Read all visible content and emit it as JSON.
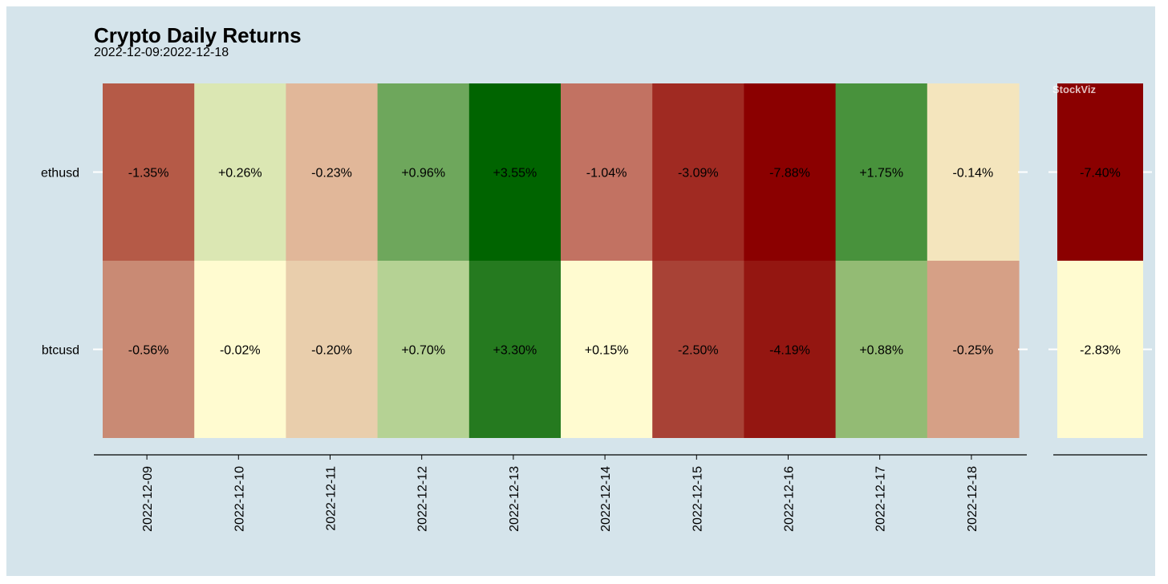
{
  "chart_data": {
    "type": "heatmap",
    "title": "Crypto Daily Returns",
    "subtitle": "2022-12-09:2022-12-18",
    "watermark": "StockViz",
    "rows": [
      "ethusd",
      "btcusd"
    ],
    "columns": [
      "2022-12-09",
      "2022-12-10",
      "2022-12-11",
      "2022-12-12",
      "2022-12-13",
      "2022-12-14",
      "2022-12-15",
      "2022-12-16",
      "2022-12-17",
      "2022-12-18"
    ],
    "values": [
      [
        -1.35,
        0.26,
        -0.23,
        0.96,
        3.55,
        -1.04,
        -3.09,
        -7.88,
        1.75,
        -0.14
      ],
      [
        -0.56,
        -0.02,
        -0.2,
        0.7,
        3.3,
        0.15,
        -2.5,
        -4.19,
        0.88,
        -0.25
      ]
    ],
    "labels": [
      [
        "-1.35%",
        "+0.26%",
        "-0.23%",
        "+0.96%",
        "+3.55%",
        "-1.04%",
        "-3.09%",
        "-7.88%",
        "+1.75%",
        "-0.14%"
      ],
      [
        "-0.56%",
        "-0.02%",
        "-0.20%",
        "+0.70%",
        "+3.30%",
        "+0.15%",
        "-2.50%",
        "-4.19%",
        "+0.88%",
        "-0.25%"
      ]
    ],
    "colors": [
      [
        "#b55a47",
        "#dbe7b3",
        "#e1b799",
        "#6ea75c",
        "#006400",
        "#c27262",
        "#a02a22",
        "#8b0000",
        "#48923c",
        "#f4e5bd"
      ],
      [
        "#c98a74",
        "#fffbd0",
        "#e9ceac",
        "#b5d294",
        "#257a1f",
        "#fffbd0",
        "#a84236",
        "#941611",
        "#93bb74",
        "#d6a086"
      ]
    ],
    "totals": {
      "values": [
        -7.4,
        -2.83
      ],
      "labels": [
        "-7.40%",
        "-2.83%"
      ],
      "colors": [
        "#8b0000",
        "#fffbd0"
      ]
    }
  }
}
